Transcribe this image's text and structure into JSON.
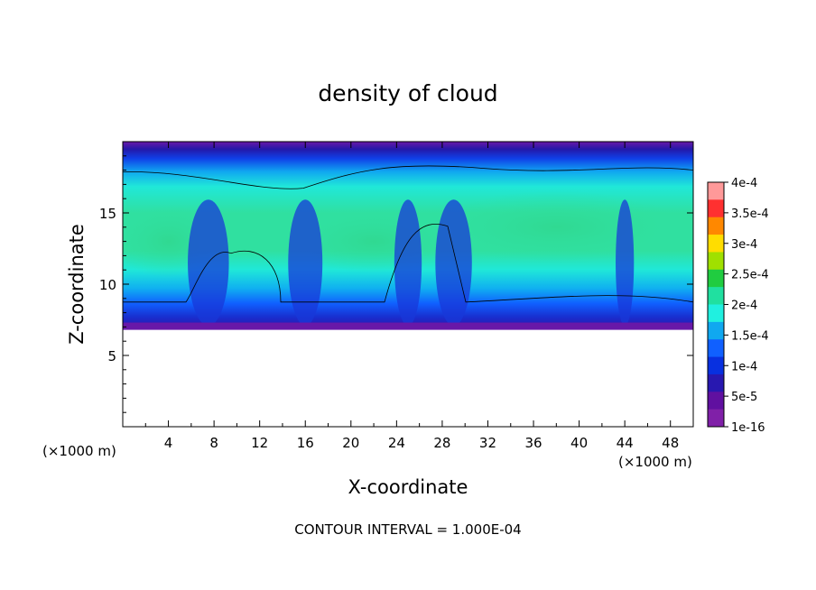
{
  "chart_data": {
    "type": "heatmap",
    "title": "density of cloud",
    "xlabel": "X-coordinate",
    "ylabel": "Z-coordinate",
    "x_unit_left": "(×1000 m)",
    "x_unit_right": "(×1000 m)",
    "xlim": [
      0,
      50
    ],
    "ylim": [
      0,
      20
    ],
    "x_ticks": [
      "4",
      "8",
      "12",
      "16",
      "20",
      "24",
      "28",
      "32",
      "36",
      "40",
      "44",
      "48"
    ],
    "y_ticks": [
      "5",
      "10",
      "15"
    ],
    "x_tick_values": [
      4,
      8,
      12,
      16,
      20,
      24,
      28,
      32,
      36,
      40,
      44,
      48
    ],
    "y_tick_values": [
      5,
      10,
      15
    ],
    "footnote": "CONTOUR INTERVAL = 1.000E-04",
    "colorbar": {
      "labels": [
        "4e-4",
        "3.5e-4",
        "3e-4",
        "2.5e-4",
        "2e-4",
        "1.5e-4",
        "1e-4",
        "5e-5",
        "1e-16"
      ],
      "values": [
        0.0004,
        0.00035,
        0.0003,
        0.00025,
        0.0002,
        0.00015,
        0.0001,
        5e-05,
        1e-16
      ],
      "colors": [
        "#ff9999",
        "#ff3030",
        "#ff8800",
        "#ffdd00",
        "#a0e000",
        "#20cc40",
        "#20e0a0",
        "#20f0e0",
        "#10a8f0",
        "#1060ff",
        "#0830e0",
        "#2818b0",
        "#6010a0",
        "#8020a8"
      ]
    },
    "field": {
      "cloud_base_z": 6.8,
      "upper_contour_z": 18,
      "lower_contour_z": 9,
      "core_value": 0.00015
    }
  }
}
